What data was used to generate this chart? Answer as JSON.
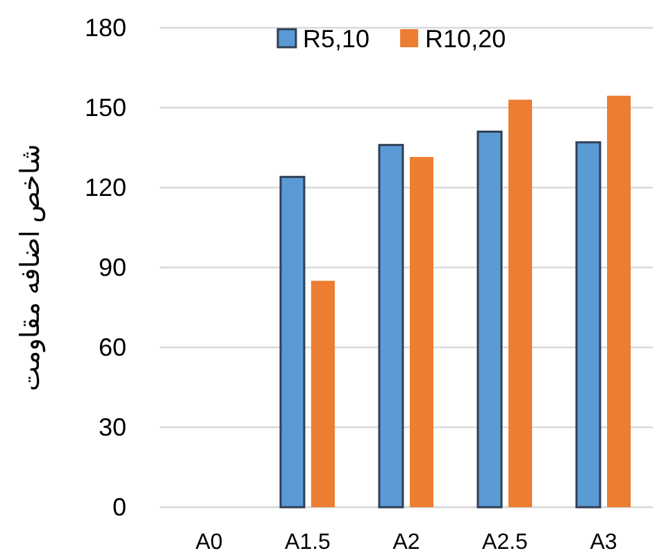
{
  "chart_data": {
    "type": "bar",
    "ylabel": "شاخص اضافه مقاومت",
    "categories": [
      "A0",
      "A1.5",
      "A2",
      "A2.5",
      "A3"
    ],
    "series": [
      {
        "name": "R5,10",
        "color": "#5b9bd5",
        "values": [
          null,
          124,
          136,
          141,
          137
        ]
      },
      {
        "name": "R10,20",
        "color": "#ed7d31",
        "values": [
          null,
          85,
          131.5,
          153,
          154.5
        ]
      }
    ],
    "ylim": [
      0,
      180
    ],
    "yticks": [
      0,
      30,
      60,
      90,
      120,
      150,
      180
    ],
    "grid": "y",
    "legend": "top"
  }
}
